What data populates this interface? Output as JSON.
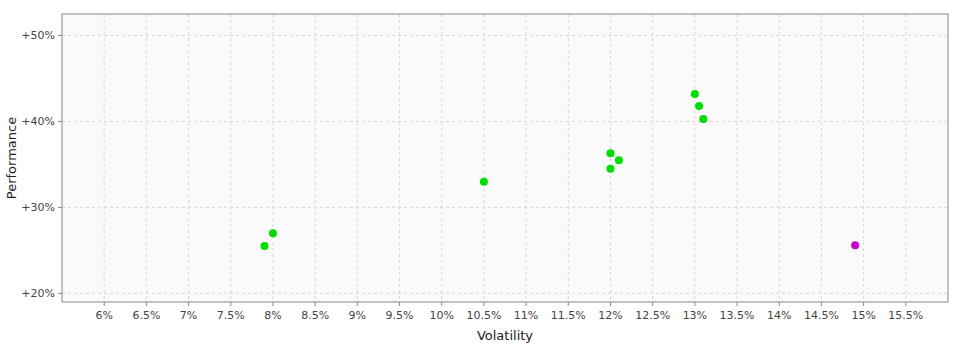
{
  "chart_data": {
    "type": "scatter",
    "xlabel": "Volatility",
    "ylabel": "Performance",
    "xlim": [
      0.055,
      0.16
    ],
    "ylim": [
      0.19,
      0.525
    ],
    "xticks": [
      {
        "value": 0.06,
        "label": "6%"
      },
      {
        "value": 0.065,
        "label": "6.5%"
      },
      {
        "value": 0.07,
        "label": "7%"
      },
      {
        "value": 0.075,
        "label": "7.5%"
      },
      {
        "value": 0.08,
        "label": "8%"
      },
      {
        "value": 0.085,
        "label": "8.5%"
      },
      {
        "value": 0.09,
        "label": "9%"
      },
      {
        "value": 0.095,
        "label": "9.5%"
      },
      {
        "value": 0.1,
        "label": "10%"
      },
      {
        "value": 0.105,
        "label": "10.5%"
      },
      {
        "value": 0.11,
        "label": "11%"
      },
      {
        "value": 0.115,
        "label": "11.5%"
      },
      {
        "value": 0.12,
        "label": "12%"
      },
      {
        "value": 0.125,
        "label": "12.5%"
      },
      {
        "value": 0.13,
        "label": "13%"
      },
      {
        "value": 0.135,
        "label": "13.5%"
      },
      {
        "value": 0.14,
        "label": "14%"
      },
      {
        "value": 0.145,
        "label": "14.5%"
      },
      {
        "value": 0.15,
        "label": "15%"
      },
      {
        "value": 0.155,
        "label": "15.5%"
      }
    ],
    "yticks": [
      {
        "value": 0.2,
        "label": "+20%"
      },
      {
        "value": 0.3,
        "label": "+30%"
      },
      {
        "value": 0.4,
        "label": "+40%"
      },
      {
        "value": 0.5,
        "label": "+50%"
      }
    ],
    "grid": true,
    "series": [
      {
        "color": "#00dd00",
        "x": [
          0.08,
          0.079,
          0.105,
          0.12,
          0.121,
          0.12,
          0.13,
          0.1305,
          0.131
        ],
        "values": [
          0.27,
          0.255,
          0.33,
          0.363,
          0.355,
          0.345,
          0.432,
          0.418,
          0.403
        ]
      },
      {
        "color": "#cc00cc",
        "x": [
          0.149
        ],
        "values": [
          0.256
        ]
      }
    ]
  }
}
